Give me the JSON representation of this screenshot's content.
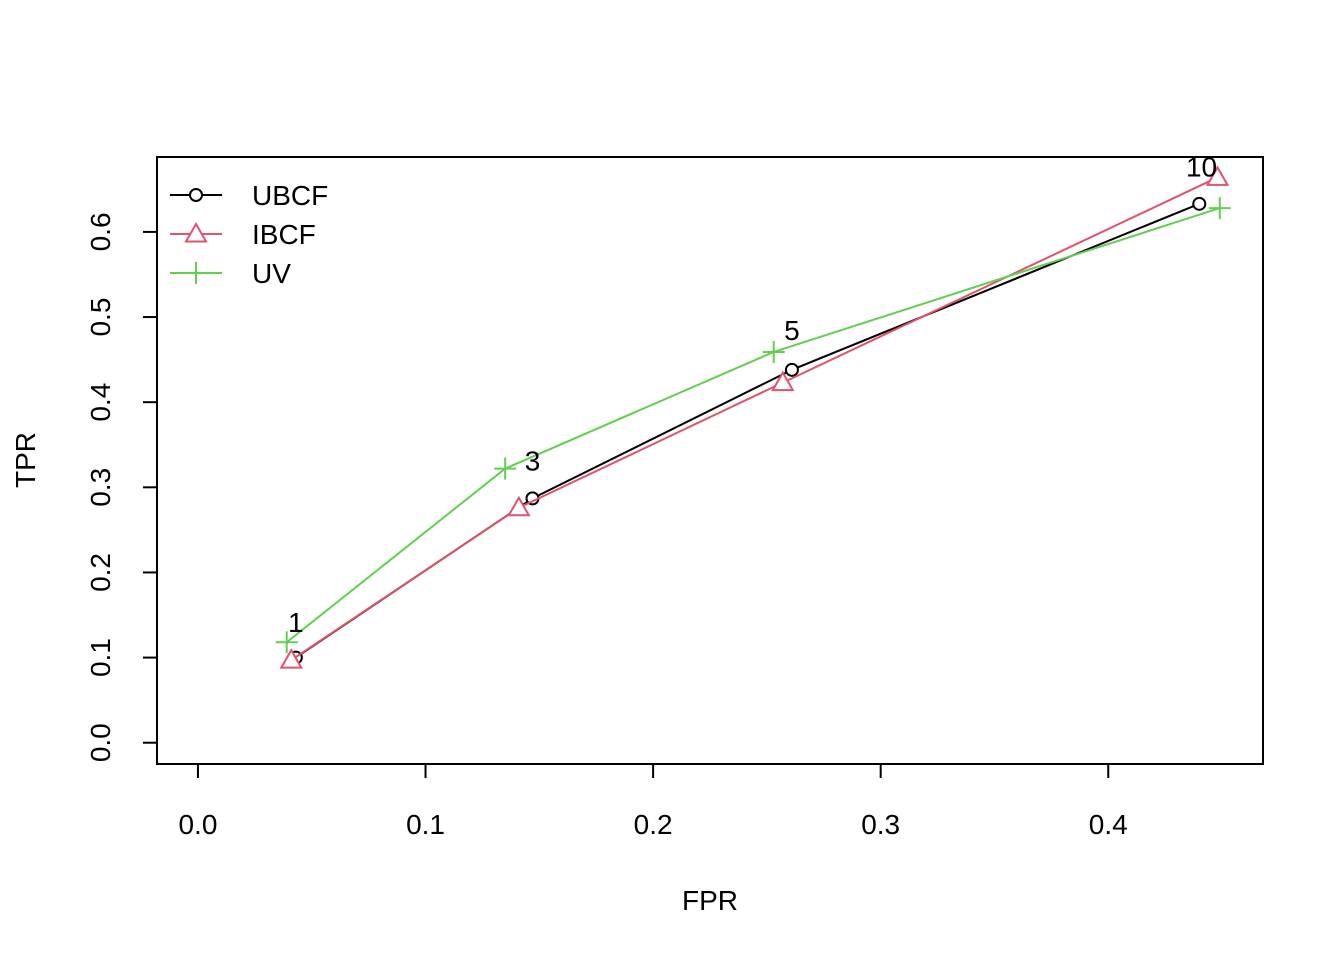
{
  "chart_data": {
    "type": "line",
    "title": "",
    "xlabel": "FPR",
    "ylabel": "TPR",
    "xlim": [
      -0.018,
      0.468
    ],
    "ylim": [
      -0.025,
      0.688
    ],
    "x_ticks": [
      "0.0",
      "0.1",
      "0.2",
      "0.3",
      "0.4"
    ],
    "x_tick_values": [
      0.0,
      0.1,
      0.2,
      0.3,
      0.4
    ],
    "y_ticks": [
      "0.0",
      "0.1",
      "0.2",
      "0.3",
      "0.4",
      "0.5",
      "0.6"
    ],
    "y_tick_values": [
      0.0,
      0.1,
      0.2,
      0.3,
      0.4,
      0.5,
      0.6
    ],
    "grid": false,
    "legend_position": "top-left",
    "series": [
      {
        "name": "UBCF",
        "color": "#000000",
        "marker": "circle",
        "x": [
          0.043,
          0.147,
          0.261,
          0.44
        ],
        "y": [
          0.1,
          0.287,
          0.438,
          0.633
        ]
      },
      {
        "name": "IBCF",
        "color": "#DF536B",
        "marker": "triangle",
        "x": [
          0.041,
          0.141,
          0.257,
          0.448
        ],
        "y": [
          0.097,
          0.276,
          0.423,
          0.664
        ]
      },
      {
        "name": "UV",
        "color": "#61D04F",
        "marker": "plus",
        "x": [
          0.039,
          0.135,
          0.253,
          0.449
        ],
        "y": [
          0.118,
          0.322,
          0.459,
          0.628
        ]
      }
    ],
    "point_labels": [
      {
        "text": "1",
        "x": 0.043,
        "y": 0.13
      },
      {
        "text": "3",
        "x": 0.147,
        "y": 0.32
      },
      {
        "text": "5",
        "x": 0.261,
        "y": 0.473
      },
      {
        "text": "10",
        "x": 0.441,
        "y": 0.665
      }
    ]
  }
}
